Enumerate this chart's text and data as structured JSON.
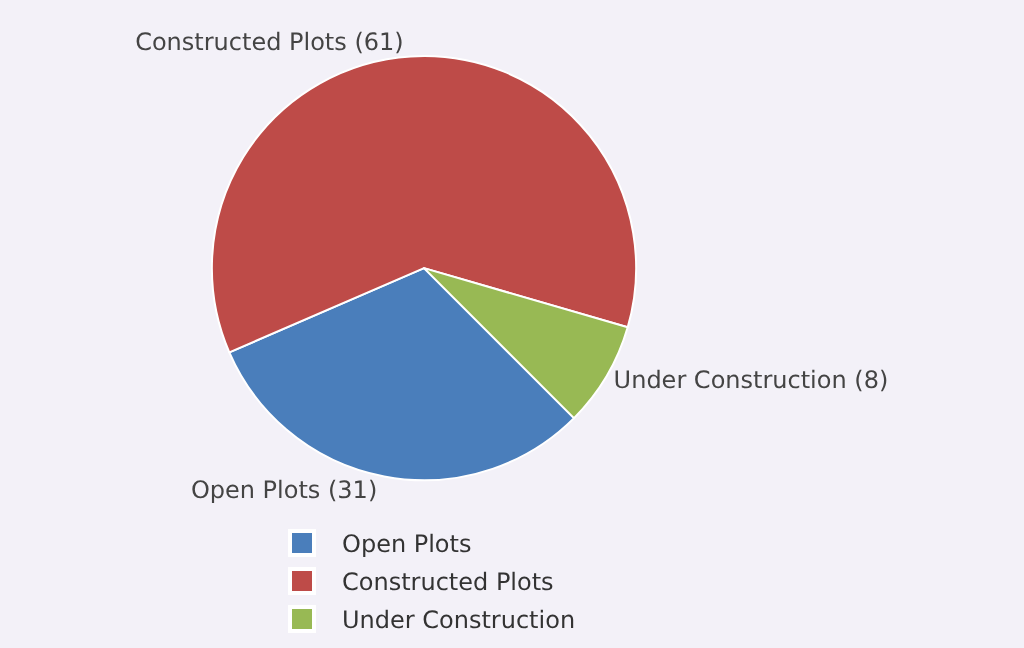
{
  "chart_data": {
    "type": "pie",
    "categories": [
      "Open Plots",
      "Constructed Plots",
      "Under Construction"
    ],
    "values": [
      31,
      61,
      8
    ],
    "colors": [
      "#4a7ebb",
      "#be4b48",
      "#98b954"
    ],
    "value_labels": [
      "Open Plots (31)",
      "Constructed Plots (61)",
      "Under Construction (8)"
    ],
    "legend": "bottom"
  }
}
